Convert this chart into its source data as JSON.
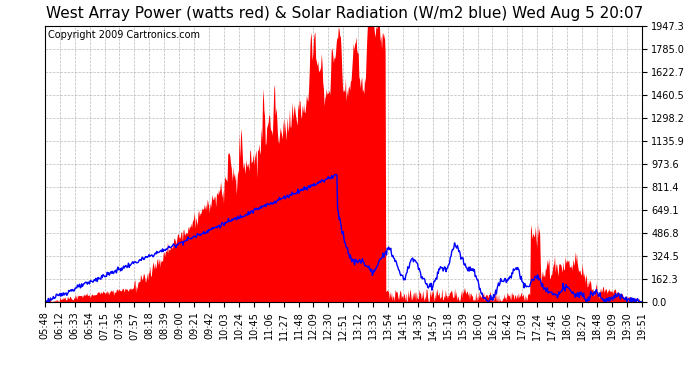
{
  "title": "West Array Power (watts red) & Solar Radiation (W/m2 blue) Wed Aug 5 20:07",
  "copyright": "Copyright 2009 Cartronics.com",
  "background_color": "#ffffff",
  "plot_bg_color": "#ffffff",
  "grid_color": "#aaaaaa",
  "red_fill_color": "#ff0000",
  "blue_line_color": "#0000ff",
  "y_max": 1947.3,
  "y_min": 0.0,
  "y_ticks": [
    0.0,
    162.3,
    324.5,
    486.8,
    649.1,
    811.4,
    973.6,
    1135.9,
    1298.2,
    1460.5,
    1622.7,
    1785.0,
    1947.3
  ],
  "x_labels": [
    "05:48",
    "06:12",
    "06:33",
    "06:54",
    "07:15",
    "07:36",
    "07:57",
    "08:18",
    "08:39",
    "09:00",
    "09:21",
    "09:42",
    "10:03",
    "10:24",
    "10:45",
    "11:06",
    "11:27",
    "11:48",
    "12:09",
    "12:30",
    "12:51",
    "13:12",
    "13:33",
    "13:54",
    "14:15",
    "14:36",
    "14:57",
    "15:18",
    "15:39",
    "16:00",
    "16:21",
    "16:42",
    "17:03",
    "17:24",
    "17:45",
    "18:06",
    "18:27",
    "18:48",
    "19:09",
    "19:30",
    "19:51"
  ],
  "title_fontsize": 11,
  "copyright_fontsize": 7,
  "tick_fontsize": 7
}
